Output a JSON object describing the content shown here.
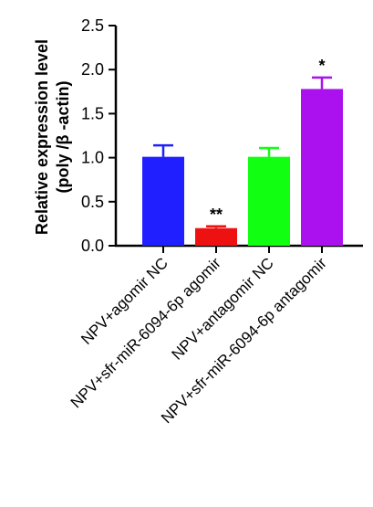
{
  "chart_data": {
    "type": "bar",
    "categories": [
      "NPV+agomir NC",
      "NPV+sfr-miR-6094-6p agomir",
      "NPV+antagomir NC",
      "NPV+sfr-miR-6094-6p antagomir"
    ],
    "values": [
      1.01,
      0.2,
      1.01,
      1.78
    ],
    "errors": [
      0.13,
      0.02,
      0.1,
      0.13
    ],
    "significance": [
      "",
      "**",
      "",
      "*"
    ],
    "colors": [
      "#1f1fff",
      "#ee1111",
      "#11ff11",
      "#aa11ee"
    ],
    "ylabel_line1": "Relative expression level",
    "ylabel_line2": "(poly /β -actin)",
    "ylim": [
      0,
      2.5
    ],
    "yticks": [
      "0.0",
      "0.5",
      "1.0",
      "1.5",
      "2.0",
      "2.5"
    ],
    "grid": false
  }
}
